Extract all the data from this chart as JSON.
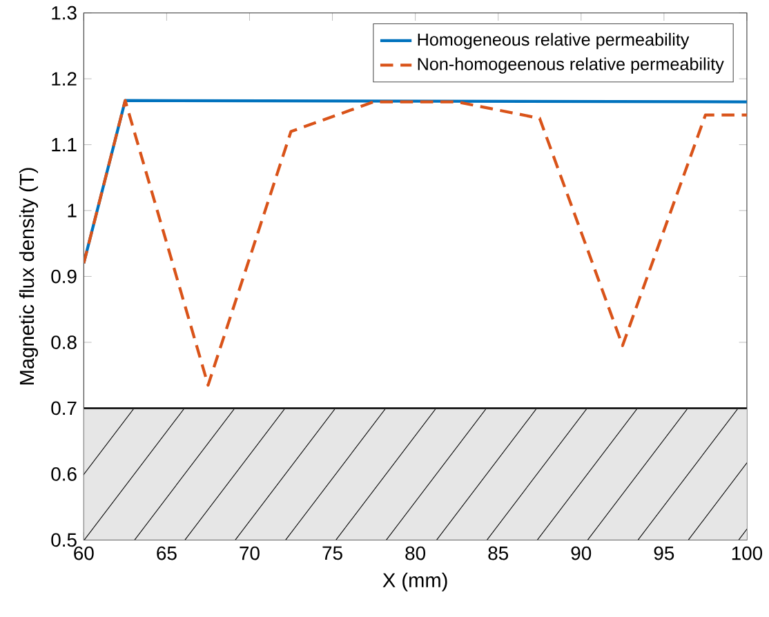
{
  "chart_data": {
    "type": "line",
    "xlabel": "X (mm)",
    "ylabel": "Magnetic flux density (T)",
    "xlim": [
      60,
      100
    ],
    "ylim": [
      0.5,
      1.3
    ],
    "xticks": [
      60,
      65,
      70,
      75,
      80,
      85,
      90,
      95,
      100
    ],
    "yticks": [
      0.5,
      0.6,
      0.7,
      0.8,
      0.9,
      1,
      1.1,
      1.2,
      1.3
    ],
    "legend": "top right",
    "series": [
      {
        "name": "Homogeneous relative permeability",
        "color": "#0072bd",
        "line_style": "solid",
        "x": [
          60,
          62.5,
          100
        ],
        "values": [
          0.92,
          1.167,
          1.165
        ]
      },
      {
        "name": "Non-homogeenous relative permeability",
        "color": "#d95319",
        "line_style": "dashed",
        "x": [
          60,
          62.5,
          67.5,
          72.5,
          77.5,
          82.5,
          87.5,
          92.5,
          97.5,
          100
        ],
        "values": [
          0.92,
          1.167,
          0.735,
          1.12,
          1.165,
          1.165,
          1.14,
          0.795,
          1.145,
          1.145
        ]
      }
    ],
    "bands": [
      {
        "axis": "y",
        "from": 0.5,
        "to": 0.7,
        "color": "#e6e6e6"
      }
    ]
  }
}
